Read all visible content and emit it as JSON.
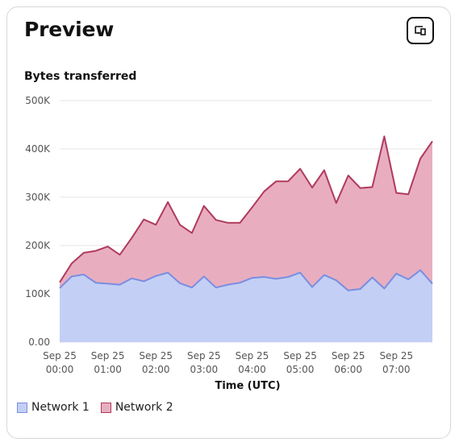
{
  "panel": {
    "title": "Preview",
    "action_icon": "share-external-icon"
  },
  "colors": {
    "network1_fill": "#c3cff5",
    "network1_line": "#7a8ee0",
    "network2_fill": "#e8aec0",
    "network2_line": "#b03a5e",
    "grid": "#e6e6e6",
    "axis_text": "#555555"
  },
  "chart_data": {
    "type": "area",
    "stacked": true,
    "title": "Bytes transferred",
    "xlabel": "Time (UTC)",
    "ylabel": "",
    "ylim": [
      0,
      500000
    ],
    "y_ticks": [
      0,
      100000,
      200000,
      300000,
      400000,
      500000
    ],
    "y_tick_labels": [
      "0.00",
      "100K",
      "200K",
      "300K",
      "400K",
      "500K"
    ],
    "x_tick_labels": [
      [
        "Sep 25",
        "00:00"
      ],
      [
        "Sep 25",
        "01:00"
      ],
      [
        "Sep 25",
        "02:00"
      ],
      [
        "Sep 25",
        "03:00"
      ],
      [
        "Sep 25",
        "04:00"
      ],
      [
        "Sep 25",
        "05:00"
      ],
      [
        "Sep 25",
        "06:00"
      ],
      [
        "Sep 25",
        "07:00"
      ]
    ],
    "x_tick_hours": [
      0,
      1,
      2,
      3,
      4,
      5,
      6,
      7
    ],
    "x_hours": [
      0,
      0.25,
      0.5,
      0.75,
      1,
      1.25,
      1.5,
      1.75,
      2,
      2.25,
      2.5,
      2.75,
      3,
      3.25,
      3.5,
      3.75,
      4,
      4.25,
      4.5,
      4.75,
      5,
      5.25,
      5.5,
      5.75,
      6,
      6.25,
      6.5,
      6.75,
      7,
      7.25,
      7.5,
      7.75
    ],
    "x_range": [
      0,
      7.75
    ],
    "grid": true,
    "legend_position": "bottom-left",
    "series": [
      {
        "name": "Network 1",
        "values": [
          112000,
          136000,
          140000,
          123000,
          121000,
          119000,
          132000,
          126000,
          137000,
          144000,
          122000,
          113000,
          136000,
          113000,
          119000,
          123000,
          133000,
          135000,
          131000,
          135000,
          144000,
          114000,
          139000,
          128000,
          107000,
          110000,
          134000,
          111000,
          142000,
          130000,
          149000,
          121000
        ]
      },
      {
        "name": "Network 2",
        "values": [
          12000,
          27000,
          45000,
          66000,
          77000,
          62000,
          84000,
          128000,
          106000,
          146000,
          121000,
          113000,
          146000,
          140000,
          128000,
          124000,
          146000,
          177000,
          202000,
          198000,
          215000,
          206000,
          217000,
          160000,
          238000,
          209000,
          187000,
          315000,
          167000,
          176000,
          231000,
          295000
        ]
      }
    ]
  },
  "legend": {
    "items": [
      {
        "label": "Network 1"
      },
      {
        "label": "Network 2"
      }
    ]
  }
}
